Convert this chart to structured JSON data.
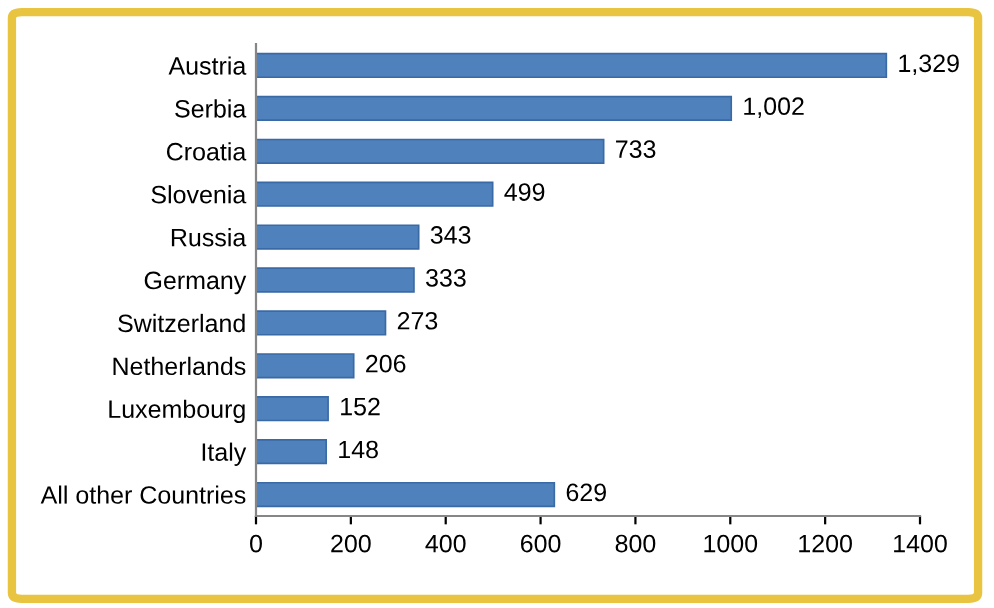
{
  "chart_data": {
    "type": "bar",
    "orientation": "horizontal",
    "categories": [
      "Austria",
      "Serbia",
      "Croatia",
      "Slovenia",
      "Russia",
      "Germany",
      "Switzerland",
      "Netherlands",
      "Luxembourg",
      "Italy",
      "All other Countries"
    ],
    "values": [
      1329,
      1002,
      733,
      499,
      343,
      333,
      273,
      206,
      152,
      148,
      629
    ],
    "value_labels": [
      "1,329",
      "1,002",
      "733",
      "499",
      "343",
      "333",
      "273",
      "206",
      "152",
      "148",
      "629"
    ],
    "color": "#4f81bd",
    "xlim": [
      0,
      1400
    ],
    "xticks": [
      0,
      200,
      400,
      600,
      800,
      1000,
      1200,
      1400
    ],
    "grid": false,
    "legend": false
  }
}
